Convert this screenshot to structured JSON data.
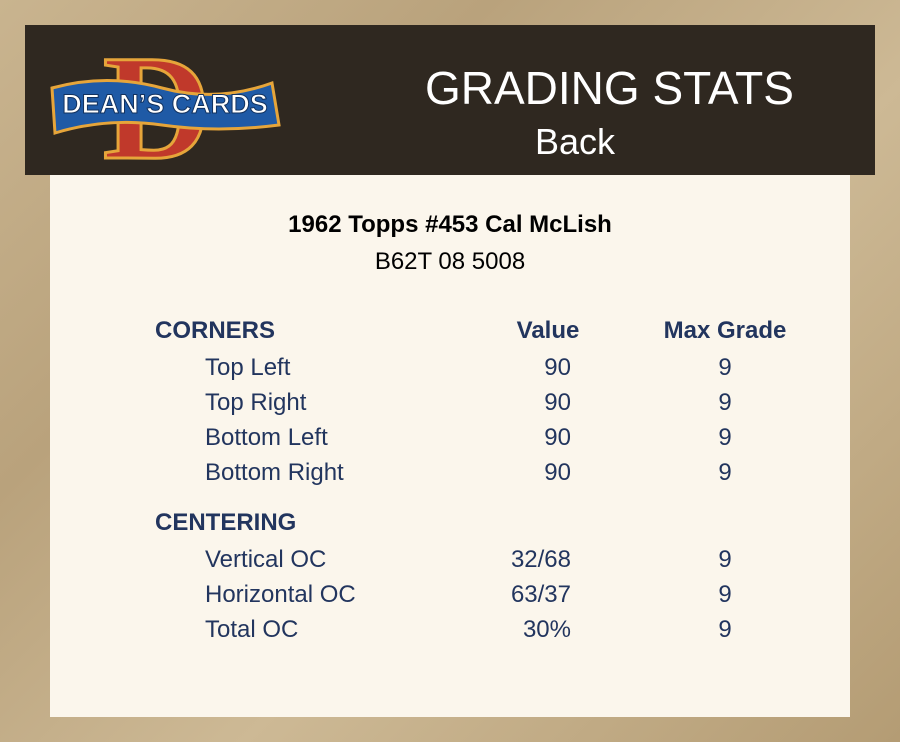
{
  "header": {
    "logo": {
      "letter": "D",
      "text": "DEAN’S CARDS"
    },
    "title": "GRADING STATS",
    "subtitle": "Back"
  },
  "card": {
    "title": "1962 Topps #453 Cal McLish",
    "code": "B62T 08 5008"
  },
  "table": {
    "columns": [
      "Value",
      "Max Grade"
    ],
    "sections": [
      {
        "name": "CORNERS",
        "rows": [
          [
            "Top Left",
            "90",
            "9"
          ],
          [
            "Top Right",
            "90",
            "9"
          ],
          [
            "Bottom Left",
            "90",
            "9"
          ],
          [
            "Bottom Right",
            "90",
            "9"
          ]
        ]
      },
      {
        "name": "CENTERING",
        "rows": [
          [
            "Vertical OC",
            "32/68",
            "9"
          ],
          [
            "Horizontal OC",
            "63/37",
            "9"
          ],
          [
            "Total OC",
            "30%",
            "9"
          ]
        ]
      }
    ]
  }
}
